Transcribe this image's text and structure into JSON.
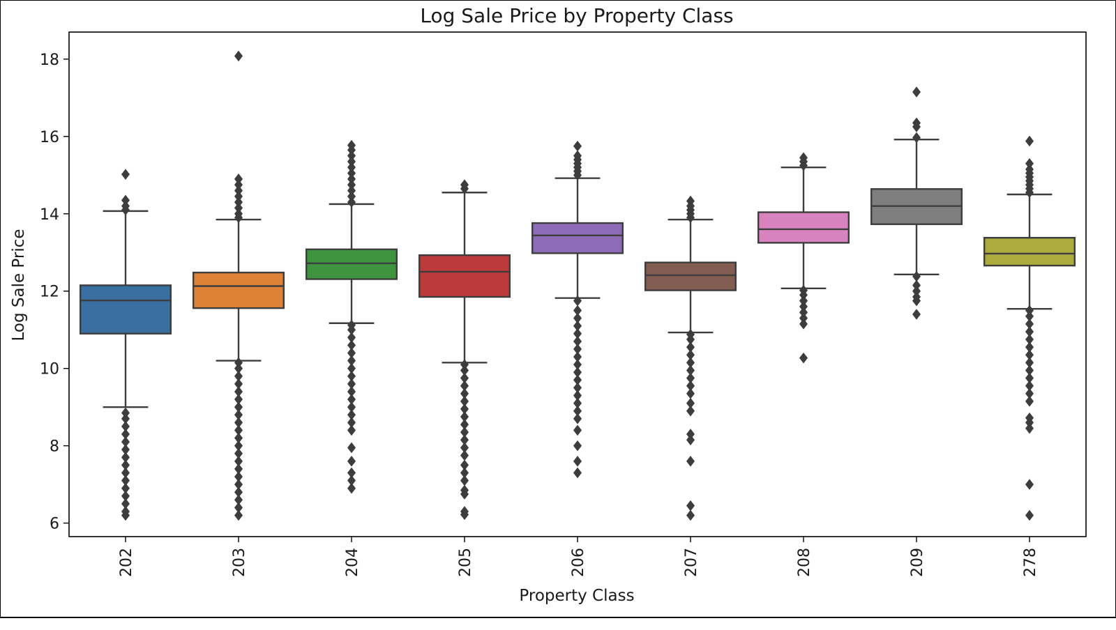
{
  "chart_data": {
    "type": "box",
    "title": "Log Sale Price by Property Class",
    "xlabel": "Property Class",
    "ylabel": "Log Sale Price",
    "ylim": [
      5.65,
      18.7
    ],
    "yticks": [
      6,
      8,
      10,
      12,
      14,
      16,
      18
    ],
    "grid": false,
    "categories": [
      "202",
      "203",
      "204",
      "205",
      "206",
      "207",
      "208",
      "209",
      "278"
    ],
    "colors": [
      "#3a6fa2",
      "#dd8236",
      "#3f9440",
      "#bc3a3b",
      "#8e6bb6",
      "#835c52",
      "#d883c0",
      "#7f7f7f",
      "#abac3b"
    ],
    "boxes": [
      {
        "category": "202",
        "whisker_low": 9.0,
        "q1": 10.9,
        "median": 11.76,
        "q3": 12.15,
        "whisker_high": 14.07,
        "outliers_high": [
          14.1,
          14.2,
          14.35,
          15.02
        ],
        "outliers_low": [
          6.2,
          6.3,
          6.5,
          6.7,
          6.9,
          7.1,
          7.3,
          7.5,
          7.7,
          7.9,
          8.1,
          8.3,
          8.5,
          8.7,
          8.85
        ]
      },
      {
        "category": "203",
        "whisker_low": 10.2,
        "q1": 11.56,
        "median": 12.13,
        "q3": 12.48,
        "whisker_high": 13.85,
        "outliers_high": [
          13.9,
          14.0,
          14.15,
          14.3,
          14.45,
          14.6,
          14.75,
          14.9,
          18.08
        ],
        "outliers_low": [
          6.2,
          6.4,
          6.6,
          6.8,
          7.0,
          7.2,
          7.4,
          7.6,
          7.8,
          8.0,
          8.2,
          8.4,
          8.6,
          8.8,
          9.0,
          9.2,
          9.4,
          9.6,
          9.8,
          10.0,
          10.15
        ]
      },
      {
        "category": "204",
        "whisker_low": 11.17,
        "q1": 12.31,
        "median": 12.72,
        "q3": 13.08,
        "whisker_high": 14.25,
        "outliers_high": [
          14.3,
          14.45,
          14.6,
          14.75,
          14.9,
          15.05,
          15.2,
          15.35,
          15.5,
          15.65,
          15.77
        ],
        "outliers_low": [
          6.9,
          7.1,
          7.3,
          7.6,
          7.95,
          8.4,
          8.6,
          8.8,
          9.0,
          9.2,
          9.4,
          9.6,
          9.8,
          10.0,
          10.2,
          10.4,
          10.6,
          10.8,
          11.0,
          11.12
        ]
      },
      {
        "category": "205",
        "whisker_low": 10.15,
        "q1": 11.85,
        "median": 12.5,
        "q3": 12.93,
        "whisker_high": 14.55,
        "outliers_high": [
          14.65,
          14.75
        ],
        "outliers_low": [
          6.22,
          6.3,
          6.75,
          6.85,
          7.1,
          7.3,
          7.5,
          7.75,
          7.95,
          8.15,
          8.35,
          8.55,
          8.75,
          8.95,
          9.15,
          9.35,
          9.55,
          9.75,
          9.95,
          10.1
        ]
      },
      {
        "category": "206",
        "whisker_low": 11.82,
        "q1": 12.98,
        "median": 13.44,
        "q3": 13.76,
        "whisker_high": 14.92,
        "outliers_high": [
          15.0,
          15.1,
          15.2,
          15.3,
          15.4,
          15.5,
          15.75
        ],
        "outliers_low": [
          7.3,
          7.6,
          8.0,
          8.4,
          8.7,
          8.9,
          9.1,
          9.3,
          9.5,
          9.7,
          9.9,
          10.1,
          10.3,
          10.5,
          10.7,
          10.9,
          11.1,
          11.3,
          11.5,
          11.75
        ]
      },
      {
        "category": "207",
        "whisker_low": 10.93,
        "q1": 12.02,
        "median": 12.41,
        "q3": 12.74,
        "whisker_high": 13.85,
        "outliers_high": [
          13.9,
          14.0,
          14.1,
          14.2,
          14.33
        ],
        "outliers_low": [
          6.2,
          6.45,
          7.6,
          8.15,
          8.3,
          8.9,
          9.1,
          9.35,
          9.55,
          9.75,
          9.95,
          10.15,
          10.35,
          10.55,
          10.75,
          10.88
        ]
      },
      {
        "category": "208",
        "whisker_low": 12.07,
        "q1": 13.25,
        "median": 13.6,
        "q3": 14.04,
        "whisker_high": 15.2,
        "outliers_high": [
          15.25,
          15.35,
          15.45
        ],
        "outliers_low": [
          10.27,
          11.15,
          11.3,
          11.45,
          11.6,
          11.75,
          11.9,
          12.02
        ]
      },
      {
        "category": "209",
        "whisker_low": 12.43,
        "q1": 13.73,
        "median": 14.2,
        "q3": 14.64,
        "whisker_high": 15.92,
        "outliers_high": [
          15.97,
          16.25,
          16.35,
          17.15
        ],
        "outliers_low": [
          11.4,
          11.75,
          11.85,
          12.0,
          12.15,
          12.38
        ]
      },
      {
        "category": "278",
        "whisker_low": 11.54,
        "q1": 12.66,
        "median": 12.97,
        "q3": 13.38,
        "whisker_high": 14.5,
        "outliers_high": [
          14.55,
          14.65,
          14.75,
          14.85,
          14.95,
          15.05,
          15.15,
          15.3,
          15.88
        ],
        "outliers_low": [
          6.2,
          7.0,
          8.45,
          8.6,
          8.72,
          9.15,
          9.35,
          9.55,
          9.75,
          9.95,
          10.15,
          10.35,
          10.55,
          10.75,
          10.95,
          11.15,
          11.35,
          11.5
        ]
      }
    ]
  }
}
